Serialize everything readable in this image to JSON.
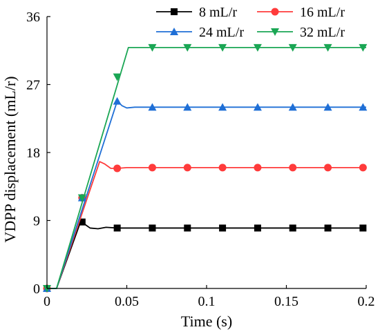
{
  "chart_data": {
    "type": "line",
    "title": "",
    "xlabel": "Time (s)",
    "ylabel": "VDPP displacement (mL/r)",
    "xlim": [
      0,
      0.2
    ],
    "ylim": [
      0,
      36
    ],
    "xticks": [
      0,
      0.05,
      0.1,
      0.15,
      0.2
    ],
    "xtick_labels": [
      "0",
      "0.05",
      "0.1",
      "0.15",
      "0.2"
    ],
    "yticks": [
      0,
      9,
      18,
      27,
      36
    ],
    "ytick_labels": [
      "0",
      "9",
      "18",
      "27",
      "36"
    ],
    "grid": false,
    "legend": {
      "placement": "top-right",
      "columns": 2
    },
    "series": [
      {
        "name": "8 mL/r",
        "color": "#000000",
        "marker": "square",
        "line": [
          [
            0,
            0
          ],
          [
            0.006,
            0
          ],
          [
            0.021,
            8.8
          ],
          [
            0.023,
            8.6
          ],
          [
            0.027,
            8.0
          ],
          [
            0.032,
            7.9
          ],
          [
            0.037,
            8.1
          ],
          [
            0.044,
            8.0
          ],
          [
            0.2,
            8.0
          ]
        ],
        "markers": [
          [
            0,
            0
          ],
          [
            0.022,
            8.8
          ],
          [
            0.044,
            8.0
          ],
          [
            0.066,
            8.0
          ],
          [
            0.088,
            8.0
          ],
          [
            0.11,
            8.0
          ],
          [
            0.132,
            8.0
          ],
          [
            0.154,
            8.0
          ],
          [
            0.176,
            8.0
          ],
          [
            0.198,
            8.0
          ]
        ]
      },
      {
        "name": "16 mL/r",
        "color": "#ff3b3b",
        "marker": "circle",
        "line": [
          [
            0,
            0
          ],
          [
            0.006,
            0
          ],
          [
            0.033,
            16.8
          ],
          [
            0.036,
            16.5
          ],
          [
            0.04,
            15.9
          ],
          [
            0.044,
            15.9
          ],
          [
            0.05,
            16.0
          ],
          [
            0.2,
            16.0
          ]
        ],
        "markers": [
          [
            0,
            0
          ],
          [
            0.022,
            12.0
          ],
          [
            0.044,
            15.9
          ],
          [
            0.066,
            16.0
          ],
          [
            0.088,
            16.0
          ],
          [
            0.11,
            16.0
          ],
          [
            0.132,
            16.0
          ],
          [
            0.154,
            16.0
          ],
          [
            0.176,
            16.0
          ],
          [
            0.198,
            16.0
          ]
        ]
      },
      {
        "name": "24 mL/r",
        "color": "#1f6fd6",
        "marker": "triangle-up",
        "line": [
          [
            0,
            0
          ],
          [
            0.006,
            0
          ],
          [
            0.044,
            24.8
          ],
          [
            0.047,
            24.2
          ],
          [
            0.05,
            23.9
          ],
          [
            0.055,
            24.0
          ],
          [
            0.2,
            24.0
          ]
        ],
        "markers": [
          [
            0,
            0
          ],
          [
            0.022,
            12.0
          ],
          [
            0.044,
            24.8
          ],
          [
            0.066,
            24.0
          ],
          [
            0.088,
            24.0
          ],
          [
            0.11,
            24.0
          ],
          [
            0.132,
            24.0
          ],
          [
            0.154,
            24.0
          ],
          [
            0.176,
            24.0
          ],
          [
            0.198,
            24.0
          ]
        ]
      },
      {
        "name": "32 mL/r",
        "color": "#1aa654",
        "marker": "triangle-down",
        "line": [
          [
            0,
            0
          ],
          [
            0.006,
            0
          ],
          [
            0.051,
            31.9
          ],
          [
            0.2,
            31.9
          ]
        ],
        "markers": [
          [
            0,
            0
          ],
          [
            0.022,
            12.0
          ],
          [
            0.044,
            28.0
          ],
          [
            0.066,
            31.9
          ],
          [
            0.088,
            31.9
          ],
          [
            0.11,
            31.9
          ],
          [
            0.132,
            31.9
          ],
          [
            0.154,
            31.9
          ],
          [
            0.176,
            31.9
          ],
          [
            0.198,
            31.9
          ]
        ]
      }
    ]
  }
}
